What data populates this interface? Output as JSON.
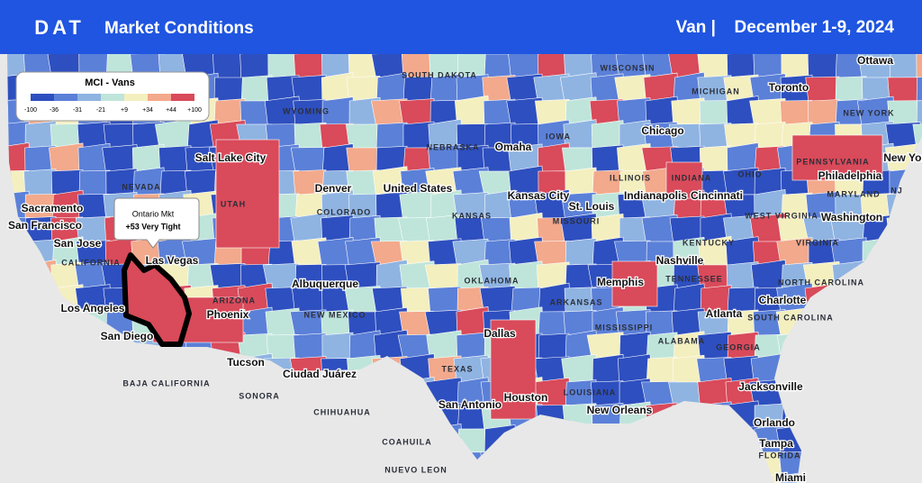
{
  "header": {
    "logo": "DAT",
    "title": "Market Conditions",
    "equipment": "Van |",
    "date": "December 1-9, 2024"
  },
  "legend": {
    "title": "MCI - Vans",
    "labels": [
      "-100",
      "-36",
      "-31",
      "-21",
      "+9",
      "+34",
      "+44",
      "+100"
    ]
  },
  "tooltip": {
    "market": "Ontario Mkt",
    "value": "+53 Very Tight"
  },
  "places": [
    "SOUTH DAKOTA",
    "WISCONSIN",
    "Ottawa",
    "Toronto",
    "MICHIGAN",
    "WYOMING",
    "NEW YORK",
    "IOWA",
    "NEBRASKA",
    "Omaha",
    "Chicago",
    "Salt Lake City",
    "PENNSYLVANIA",
    "New York",
    "Philadelphia",
    "OHIO",
    "ILLINOIS",
    "INDIANA",
    "Indianapolis",
    "Cincinnati",
    "NEVADA",
    "UTAH",
    "Denver",
    "United States",
    "Kansas City",
    "MARYLAND",
    "NJ",
    "Sacramento",
    "COLORADO",
    "KANSAS",
    "St. Louis",
    "WEST VIRGINIA",
    "Washington",
    "San Francisco",
    "MISSOURI",
    "San Jose",
    "KENTUCKY",
    "VIRGINIA",
    "Las Vegas",
    "CALIFORNIA",
    "Nashville",
    "OKLAHOMA",
    "ARKANSAS",
    "TENNESSEE",
    "NORTH CAROLINA",
    "Albuquerque",
    "ARIZONA",
    "Memphis",
    "Los Angeles",
    "Charlotte",
    "NEW MEXICO",
    "Atlanta",
    "SOUTH CAROLINA",
    "Phoenix",
    "San Diego",
    "MISSISSIPPI",
    "ALABAMA",
    "Dallas",
    "GEORGIA",
    "Tucson",
    "TEXAS",
    "Ciudad Juárez",
    "BAJA CALIFORNIA",
    "SONORA",
    "LOUISIANA",
    "Houston",
    "Jacksonville",
    "San Antonio",
    "New Orleans",
    "CHIHUAHUA",
    "Orlando",
    "COAHUILA",
    "Tampa",
    "FLORIDA",
    "NUEVO LEON",
    "Miami"
  ]
}
